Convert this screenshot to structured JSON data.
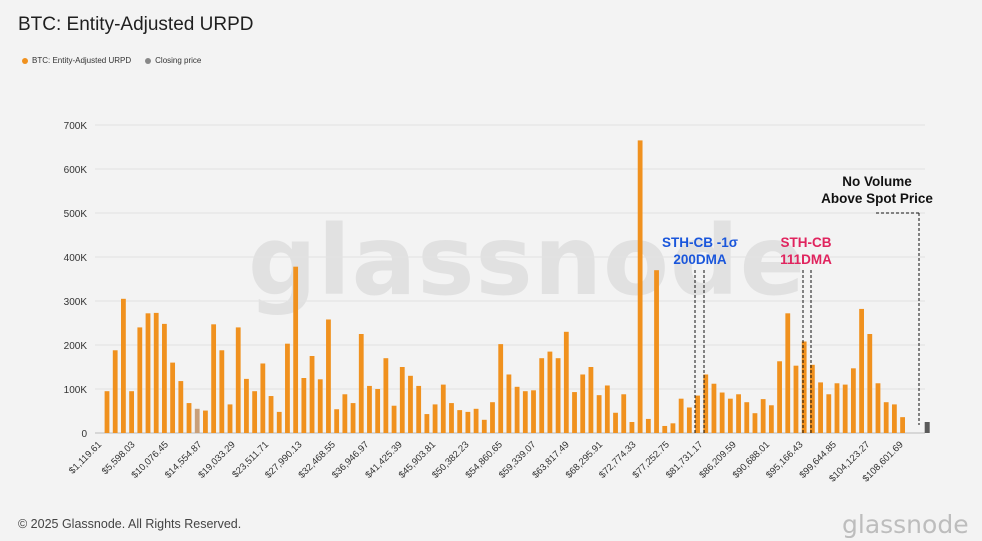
{
  "title": "BTC: Entity-Adjusted URPD",
  "legend": [
    {
      "label": "BTC: Entity-Adjusted URPD",
      "color": "#f0911e"
    },
    {
      "label": "Closing price",
      "color": "#888888"
    }
  ],
  "watermark": "glassnode",
  "footer": "© 2025 Glassnode. All Rights Reserved.",
  "brand": "glassnode",
  "colors": {
    "bar": "#f0911e",
    "bar_dim": "#c9a07a",
    "close": "#5a5a5a",
    "grid": "#e2e2e2",
    "blue": "#1a56db",
    "red": "#e0245e",
    "black": "#111111"
  },
  "annotations": [
    {
      "lines": [
        "STH-CB -1σ",
        "200DMA"
      ],
      "color": "blue"
    },
    {
      "lines": [
        "STH-CB",
        "111DMA"
      ],
      "color": "red"
    },
    {
      "lines": [
        "No Volume",
        "Above Spot Price"
      ],
      "color": "black"
    }
  ],
  "chart_data": {
    "type": "bar",
    "ylim": [
      0,
      700000
    ],
    "yticks": [
      "0",
      "100K",
      "200K",
      "300K",
      "400K",
      "500K",
      "600K",
      "700K"
    ],
    "grid": true,
    "legend_position": "top-left",
    "xticklabels": [
      "$1,119.61",
      "$5,598.03",
      "$10,076.45",
      "$14,554.87",
      "$19,033.29",
      "$23,511.71",
      "$27,990.13",
      "$32,468.55",
      "$36,946.97",
      "$41,425.39",
      "$45,903.81",
      "$50,382.23",
      "$54,860.65",
      "$59,339.07",
      "$63,817.49",
      "$68,295.91",
      "$72,774.33",
      "$77,252.75",
      "$81,731.17",
      "$86,209.59",
      "$90,688.01",
      "$95,166.43",
      "$99,644.85",
      "$104,123.27",
      "$108,601.69"
    ],
    "series": [
      {
        "name": "BTC: Entity-Adjusted URPD",
        "values": [
          95000,
          188000,
          305000,
          95000,
          240000,
          272000,
          273000,
          248000,
          160000,
          118000,
          68000,
          55000,
          51000,
          247000,
          188000,
          65000,
          240000,
          123000,
          95000,
          158000,
          84000,
          48000,
          203000,
          378000,
          125000,
          175000,
          122000,
          258000,
          54000,
          88000,
          68000,
          225000,
          107000,
          100000,
          170000,
          62000,
          150000,
          130000,
          107000,
          43000,
          65000,
          110000,
          68000,
          52000,
          48000,
          55000,
          30000,
          70000,
          202000,
          133000,
          105000,
          95000,
          97000,
          170000,
          185000,
          170000,
          230000,
          93000,
          133000,
          150000,
          86000,
          108000,
          46000,
          88000,
          25000,
          665000,
          32000,
          370000,
          16000,
          22000,
          78000,
          58000,
          85000,
          133000,
          112000,
          92000,
          78000,
          88000,
          70000,
          45000,
          77000,
          63000,
          163000,
          272000,
          153000,
          208000,
          155000,
          115000,
          88000,
          113000,
          110000,
          147000,
          282000,
          225000,
          113000,
          70000,
          65000,
          36000
        ]
      }
    ],
    "closing_price_bar_value": 25000
  }
}
